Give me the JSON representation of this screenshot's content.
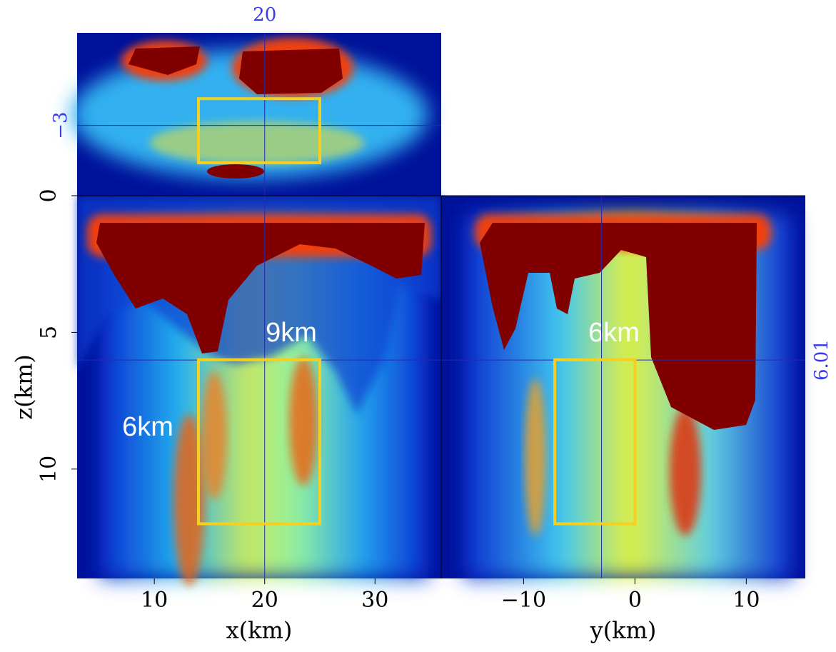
{
  "chart_data": {
    "type": "cube",
    "xlabel": "x(km)",
    "ylabel": "y(km)",
    "zlabel": "z(km)",
    "xlim": [
      3,
      36
    ],
    "xticks": [
      10,
      20,
      30
    ],
    "ylim": [
      -17.4,
      15.3
    ],
    "yticks": [
      {
        "value": -10,
        "label": "−10"
      },
      0,
      10
    ],
    "zlim": [
      0,
      14
    ],
    "zticks": [
      0,
      5,
      10
    ],
    "top_ylim": [
      -10.9,
      7.4
    ],
    "crosshair": {
      "x": 20,
      "y": {
        "value": -3,
        "label": "−3"
      },
      "z": 6.01
    },
    "box": {
      "x": [
        14,
        25
      ],
      "y": [
        -7.2,
        0
      ],
      "z": [
        6,
        12
      ]
    },
    "annotations": [
      "9km",
      "6km",
      "6km"
    ]
  }
}
